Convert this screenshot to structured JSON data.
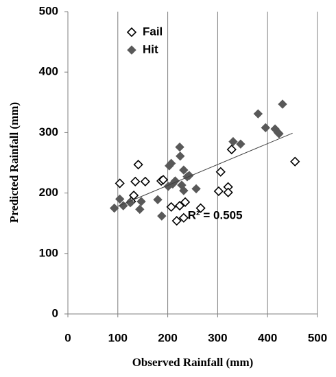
{
  "chart_data": {
    "type": "scatter",
    "x_label": "Observed Rainfall (mm)",
    "y_label": "Predicted Rainfall (mm)",
    "xlim": [
      0,
      500
    ],
    "xticks": [
      0,
      100,
      200,
      300,
      400,
      500
    ],
    "ylim": [
      0,
      500
    ],
    "yticks": [
      0,
      100,
      200,
      300,
      400,
      500
    ],
    "grid": "x",
    "legend": "upper left",
    "series": [
      {
        "name": "Fail",
        "color": "#000000",
        "filled": false,
        "x": [
          104,
          141,
          135,
          155,
          132,
          127,
          187,
          191,
          207,
          218,
          224,
          232,
          235,
          266,
          306,
          302,
          321,
          321,
          328,
          455
        ],
        "values": [
          216,
          247,
          219,
          219,
          196,
          186,
          220,
          222,
          177,
          154,
          179,
          159,
          185,
          175,
          235,
          203,
          210,
          201,
          272,
          252
        ]
      },
      {
        "name": "Hit",
        "color": "#595959",
        "filled": true,
        "x": [
          93,
          104,
          111,
          125,
          144,
          147,
          180,
          188,
          201,
          203,
          207,
          210,
          215,
          224,
          225,
          228,
          232,
          232,
          239,
          243,
          257,
          331,
          346,
          381,
          396,
          415,
          421,
          423,
          430
        ],
        "values": [
          175,
          190,
          179,
          184,
          173,
          186,
          189,
          162,
          211,
          245,
          249,
          215,
          220,
          276,
          261,
          213,
          204,
          238,
          227,
          229,
          207,
          285,
          281,
          331,
          308,
          306,
          300,
          298,
          347
        ]
      }
    ],
    "trendline": {
      "color": "#404040",
      "x": [
        100,
        450
      ],
      "y": [
        178,
        299
      ]
    },
    "annotation": "R² = 0.505"
  }
}
